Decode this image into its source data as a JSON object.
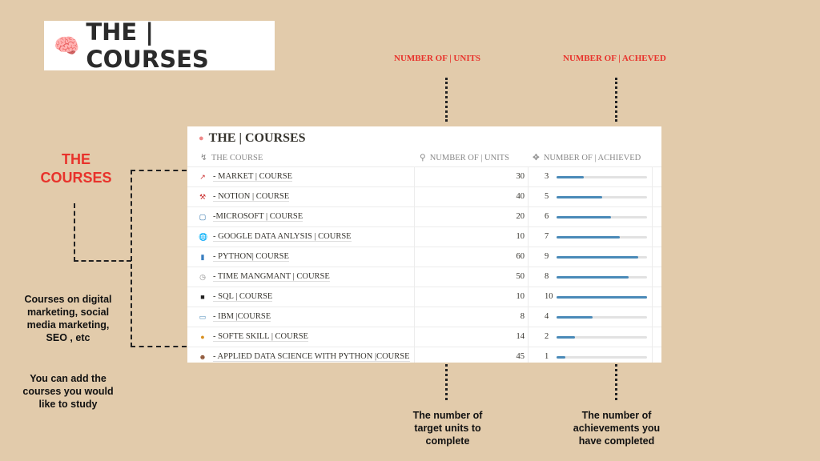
{
  "title": "THE | COURSES",
  "annotations": {
    "units_label": "NUMBER OF |  UNITS",
    "achieved_label": "NUMBER OF |  ACHEVED",
    "courses_label": "THE COURSES",
    "courses_note": "Courses on digital marketing, social media marketing, SEO , etc",
    "add_note": "You can add the courses you would like to study",
    "units_note": "The number of target units to complete",
    "achieved_note": "The number of achievements you have completed"
  },
  "table": {
    "title": "THE | COURSES",
    "headers": {
      "course": "THE COURSE",
      "units": "NUMBER OF | UNITS",
      "achieved": "NUMBER OF | ACHIEVED"
    },
    "progress_max": 10,
    "colors": {
      "bar": "#4a8ab8",
      "track": "#e2e2e2"
    },
    "rows": [
      {
        "icon": "chart-icon",
        "name": "- MARKET | COURSE",
        "units": "30",
        "achieved": 3
      },
      {
        "icon": "crane-icon",
        "name": "- NOTION | COURSE",
        "units": "40",
        "achieved": 5
      },
      {
        "icon": "note-icon",
        "name": "-MICROSOFT | COURSE",
        "units": "20",
        "achieved": 6
      },
      {
        "icon": "globe-icon",
        "name": "- GOOGLE DATA ANLYSIS | COURSE",
        "units": "10",
        "achieved": 7
      },
      {
        "icon": "bar-chart-icon",
        "name": "- PYTHON| COURSE",
        "units": "60",
        "achieved": 9
      },
      {
        "icon": "clock-icon",
        "name": "- TIME MANGMANT | COURSE",
        "units": "50",
        "achieved": 8
      },
      {
        "icon": "square-icon",
        "name": "- SQL | COURSE",
        "units": "10",
        "achieved": 10
      },
      {
        "icon": "laptop-icon",
        "name": "- IBM |COURSE",
        "units": "8",
        "achieved": 4
      },
      {
        "icon": "bulb-icon",
        "name": "- SOFTE SKILL | COURSE",
        "units": "14",
        "achieved": 2
      },
      {
        "icon": "person-icon",
        "name": "- APPLIED DATA SCIENCE WITH PYTHON |COURSE",
        "units": "45",
        "achieved": 1
      }
    ]
  }
}
